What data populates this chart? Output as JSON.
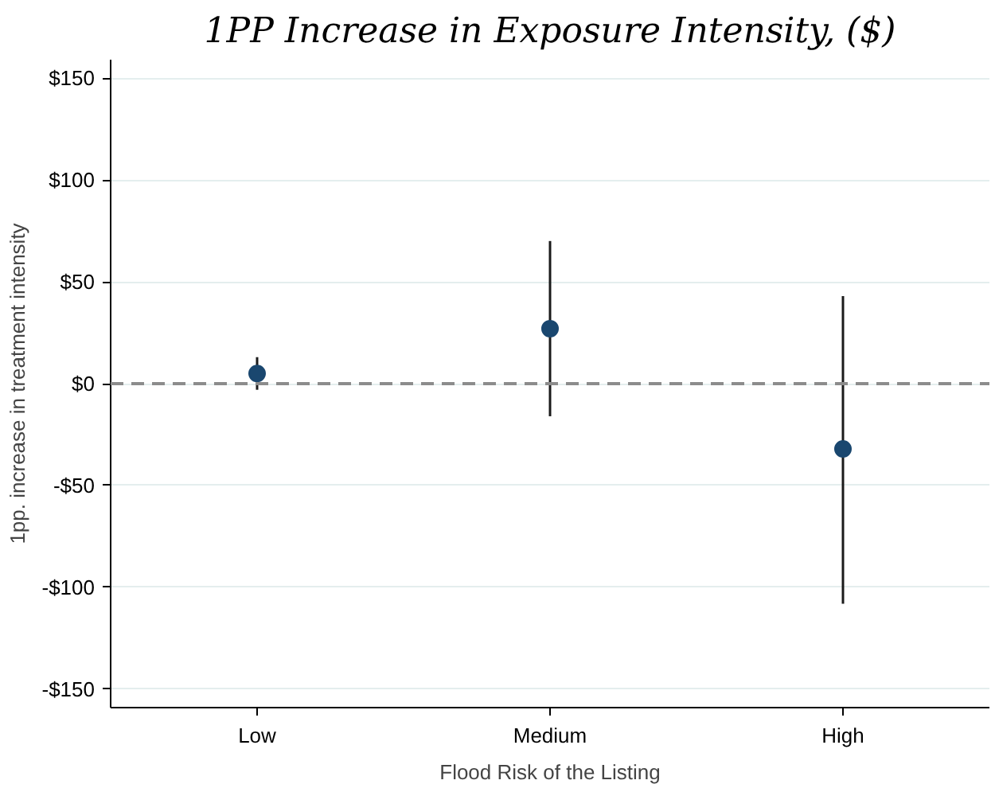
{
  "chart_data": {
    "type": "scatter",
    "title": "1PP Increase in Exposure Intensity, ($)",
    "xlabel": "Flood Risk of the Listing",
    "ylabel": "1pp. increase in treatment intensity",
    "categories": [
      "Low",
      "Medium",
      "High"
    ],
    "values": [
      5,
      27,
      -32
    ],
    "errors": [
      [
        -3,
        13
      ],
      [
        -16,
        70
      ],
      [
        -108,
        43
      ]
    ],
    "color": "#1a476f",
    "marker": "circle",
    "ylim": [
      -159,
      159
    ],
    "yticks": [
      {
        "value": -150,
        "label": "-$150"
      },
      {
        "value": -100,
        "label": "-$100"
      },
      {
        "value": -50,
        "label": "-$50"
      },
      {
        "value": 0,
        "label": "$0"
      },
      {
        "value": 50,
        "label": "$50"
      },
      {
        "value": 100,
        "label": "$100"
      },
      {
        "value": 150,
        "label": "$150"
      }
    ],
    "ref_lines": [
      {
        "axis": "y",
        "value": 0,
        "label": null,
        "color": "#8c8c8c",
        "line_style": "dashed"
      }
    ],
    "grid": "y"
  }
}
